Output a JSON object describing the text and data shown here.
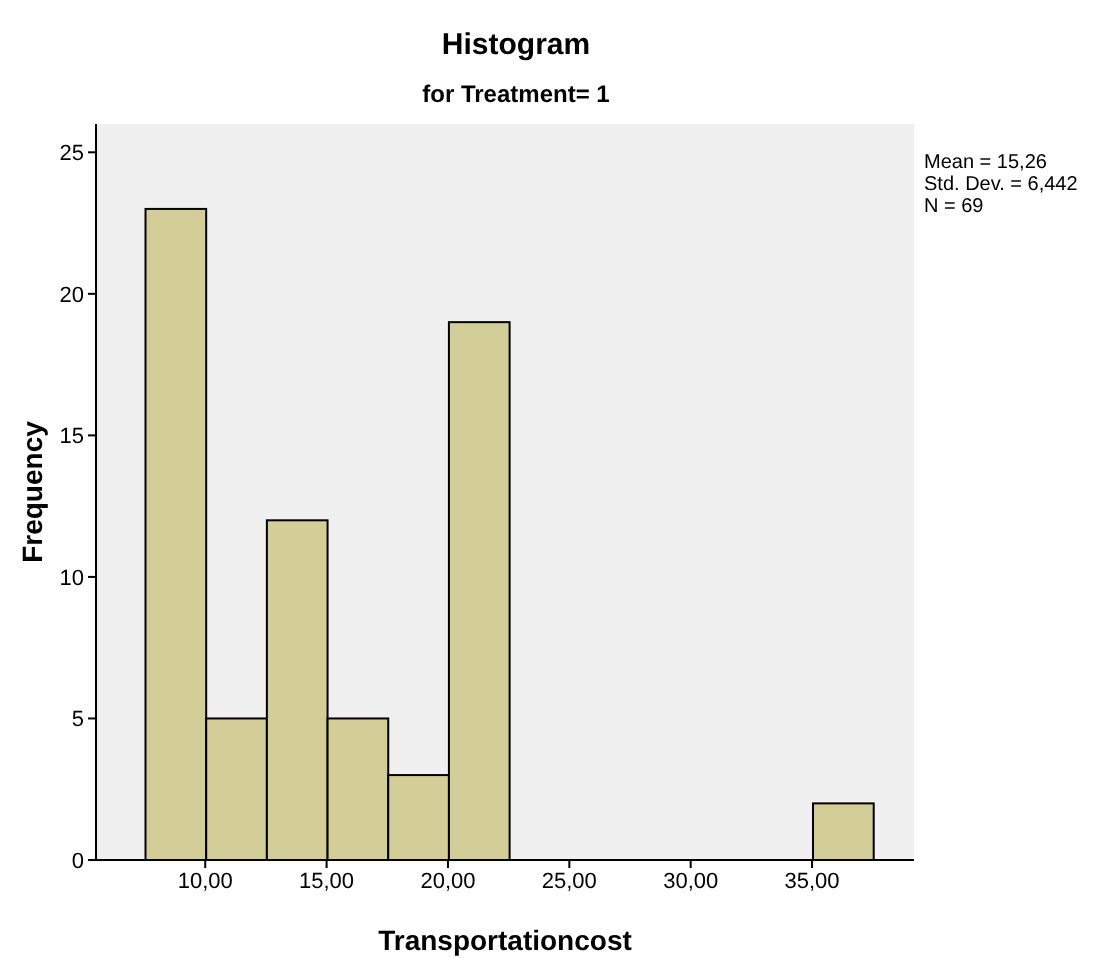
{
  "chart_data": {
    "type": "histogram",
    "title": "Histogram",
    "subtitle": "for Treatment= 1",
    "xlabel": "Transportationcost",
    "ylabel": "Frequency",
    "bins": [
      7.5,
      10,
      12.5,
      15,
      17.5,
      20,
      22.5,
      25,
      27.5,
      30,
      32.5,
      35,
      37.5
    ],
    "values": [
      23,
      5,
      12,
      5,
      3,
      19,
      0,
      0,
      0,
      0,
      0,
      2
    ],
    "color": "#d3ce97",
    "xlim": [
      5.5,
      39.2
    ],
    "xticks": [
      {
        "value": 10,
        "label": "10,00"
      },
      {
        "value": 15,
        "label": "15,00"
      },
      {
        "value": 20,
        "label": "20,00"
      },
      {
        "value": 25,
        "label": "25,00"
      },
      {
        "value": 30,
        "label": "30,00"
      },
      {
        "value": 35,
        "label": "35,00"
      }
    ],
    "ylim": [
      0,
      26
    ],
    "yticks": [
      0,
      5,
      10,
      15,
      20,
      25
    ],
    "grid": false,
    "annotations": [
      "Mean = 15,26",
      "Std. Dev. = 6,442",
      "N = 69"
    ]
  }
}
